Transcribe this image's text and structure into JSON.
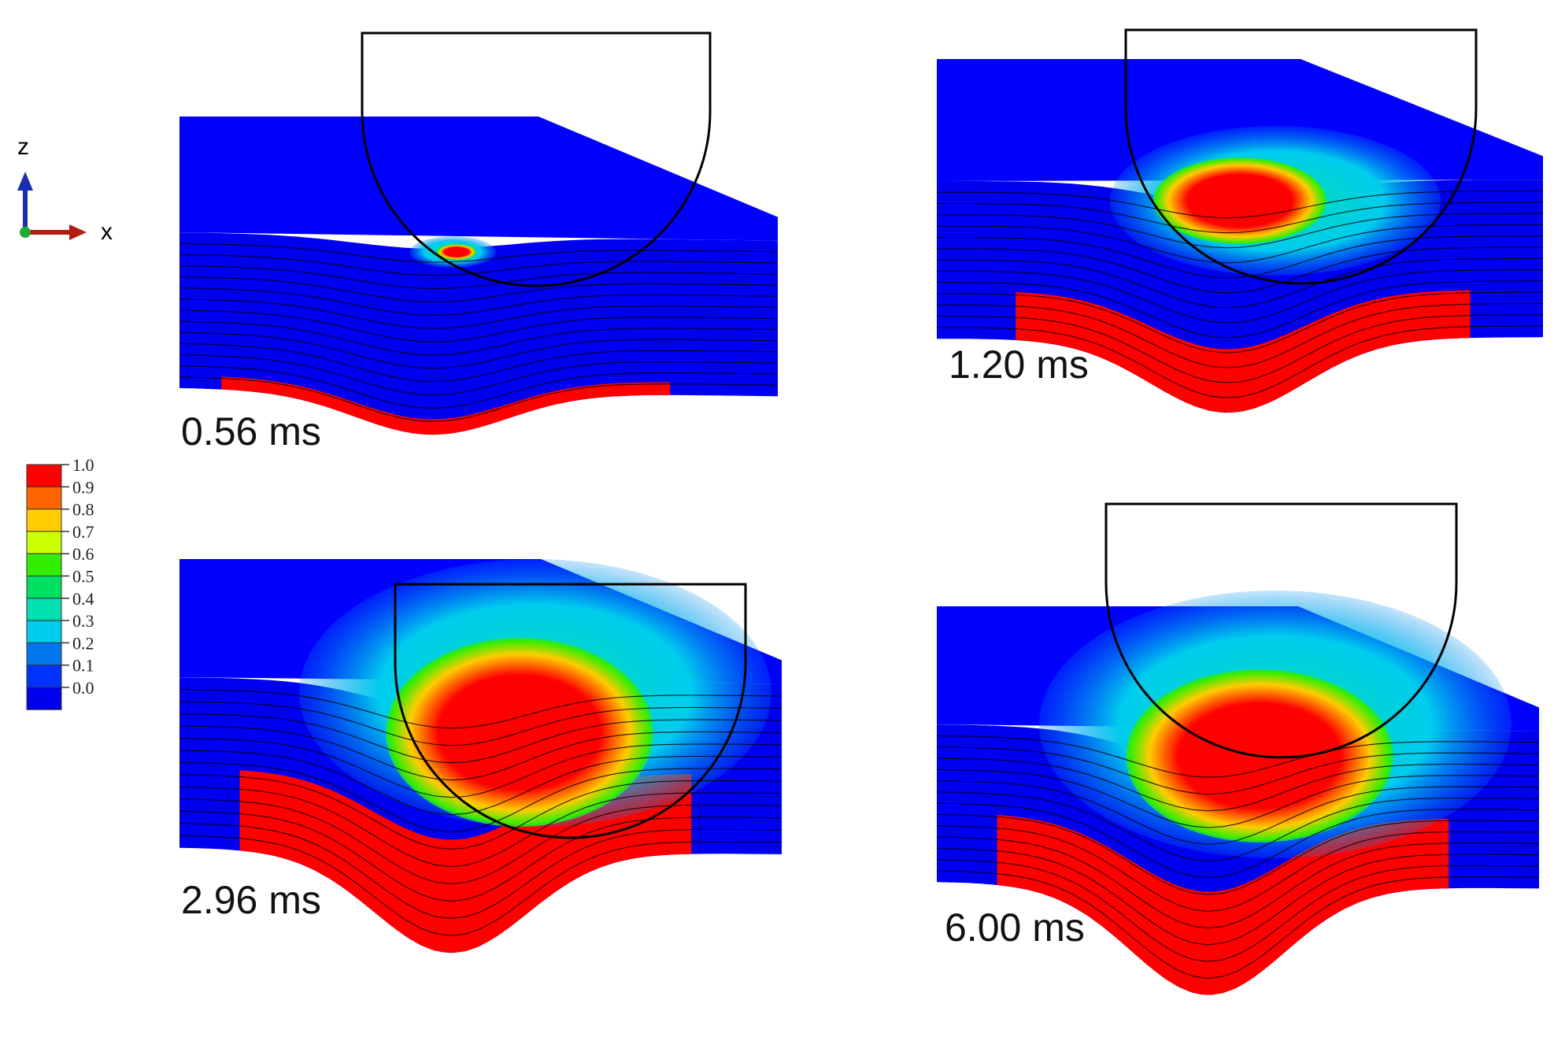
{
  "axes_triad": {
    "vertical_axis": "z",
    "horizontal_axis": "x",
    "colors": {
      "z": "#1a2fb0",
      "x": "#b01c12",
      "origin": "#22aa33"
    }
  },
  "legend": {
    "ticks": [
      "1.0",
      "0.9",
      "0.8",
      "0.7",
      "0.6",
      "0.5",
      "0.4",
      "0.3",
      "0.2",
      "0.1",
      "0.0"
    ],
    "bands": [
      "#ff0000",
      "#ff6600",
      "#ffcc00",
      "#ccff00",
      "#33ee00",
      "#00e060",
      "#00e0b0",
      "#00ccee",
      "#0077ee",
      "#0033ff",
      "#0000ee"
    ]
  },
  "colors": {
    "undamaged": "#0000ff",
    "plate_blue": "#0000f0",
    "full_damage": "#ff0000",
    "moderate": "#33ee00",
    "light": "#00ccee",
    "outline": "#000000"
  },
  "panels": [
    {
      "id": "p1",
      "time_label": "0.56 ms"
    },
    {
      "id": "p2",
      "time_label": "1.20 ms"
    },
    {
      "id": "p3",
      "time_label": "2.96 ms"
    },
    {
      "id": "p4",
      "time_label": "6.00 ms"
    }
  ]
}
